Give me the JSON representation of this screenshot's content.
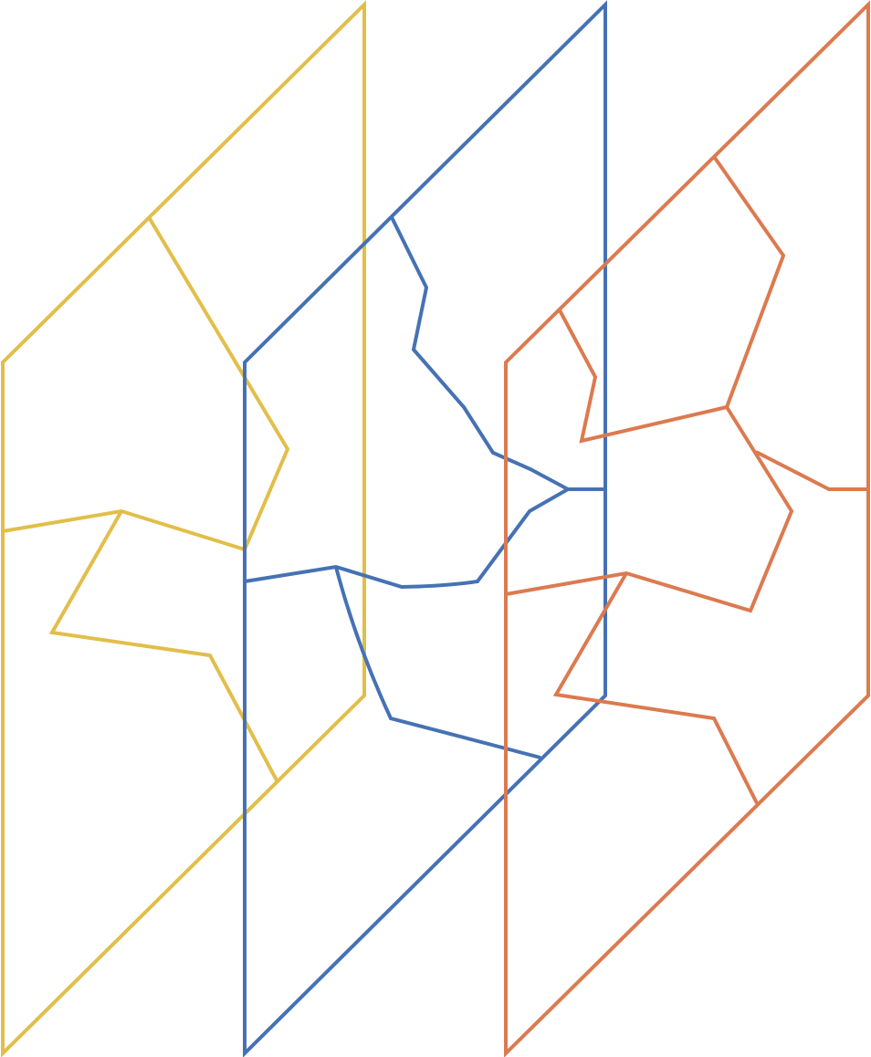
{
  "colors": {
    "background": "#ffffff",
    "yellow": "#E2BE4A",
    "blue": "#4672B4",
    "orange": "#DC7A50"
  },
  "layers": [
    {
      "id": "yellow",
      "color_key": "yellow"
    },
    {
      "id": "blue",
      "color_key": "blue"
    },
    {
      "id": "orange",
      "color_key": "orange"
    }
  ]
}
